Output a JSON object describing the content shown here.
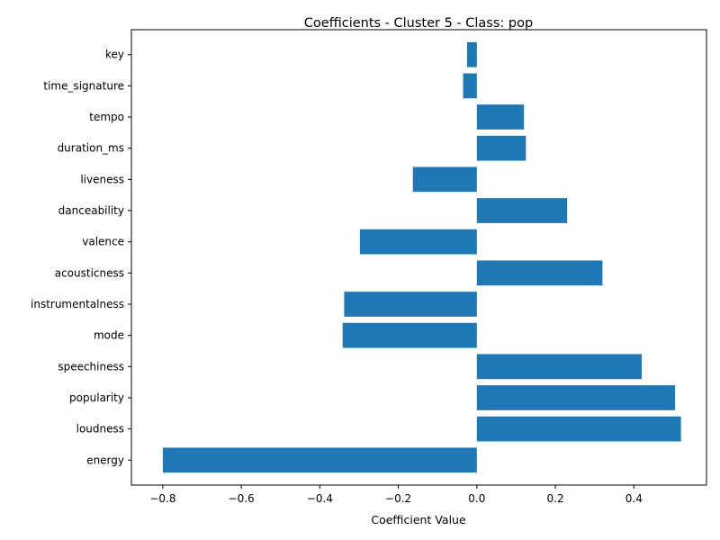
{
  "chart_data": {
    "type": "bar",
    "orientation": "horizontal",
    "title": "Coefficients - Cluster 5 - Class: pop",
    "xlabel": "Coefficient Value",
    "ylabel": "",
    "xlim": [
      -0.88,
      0.585
    ],
    "xticks": [
      -0.8,
      -0.6,
      -0.4,
      -0.2,
      0.0,
      0.2,
      0.4
    ],
    "xtick_labels": [
      "−0.8",
      "−0.6",
      "−0.4",
      "−0.2",
      "0.0",
      "0.2",
      "0.4"
    ],
    "grid": false,
    "legend": "none",
    "bar_color": "#1f77b4",
    "categories": [
      "energy",
      "loudness",
      "popularity",
      "speechiness",
      "mode",
      "instrumentalness",
      "acousticness",
      "valence",
      "danceability",
      "liveness",
      "duration_ms",
      "tempo",
      "time_signature",
      "key"
    ],
    "values": [
      -0.8,
      0.52,
      0.505,
      0.42,
      -0.342,
      -0.338,
      0.32,
      -0.298,
      0.23,
      -0.163,
      0.125,
      0.12,
      -0.035,
      -0.025
    ]
  }
}
